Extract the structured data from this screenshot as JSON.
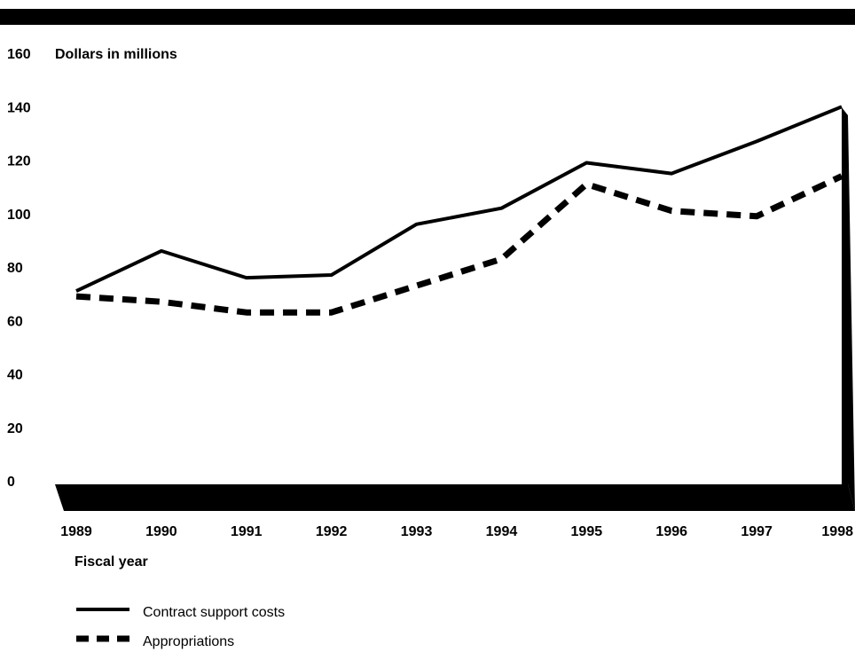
{
  "chart_data": {
    "type": "line",
    "title": "",
    "ylabel": "Dollars in millions",
    "xlabel": "Fiscal year",
    "x": [
      "1989",
      "1990",
      "1991",
      "1992",
      "1993",
      "1994",
      "1995",
      "1996",
      "1997",
      "1998"
    ],
    "yticks": [
      "0",
      "20",
      "40",
      "60",
      "80",
      "100",
      "120",
      "140",
      "160"
    ],
    "ylim": [
      0,
      160
    ],
    "grid": false,
    "legend_position": "bottom-left",
    "series": [
      {
        "name": "Contract support costs",
        "style": "solid",
        "color": "#000000",
        "values": [
          71,
          86,
          76,
          77,
          96,
          102,
          119,
          115,
          127,
          140
        ]
      },
      {
        "name": "Appropriations",
        "style": "dashed",
        "color": "#000000",
        "values": [
          69,
          67,
          63,
          63,
          73,
          83,
          111,
          101,
          99,
          114
        ]
      }
    ]
  }
}
